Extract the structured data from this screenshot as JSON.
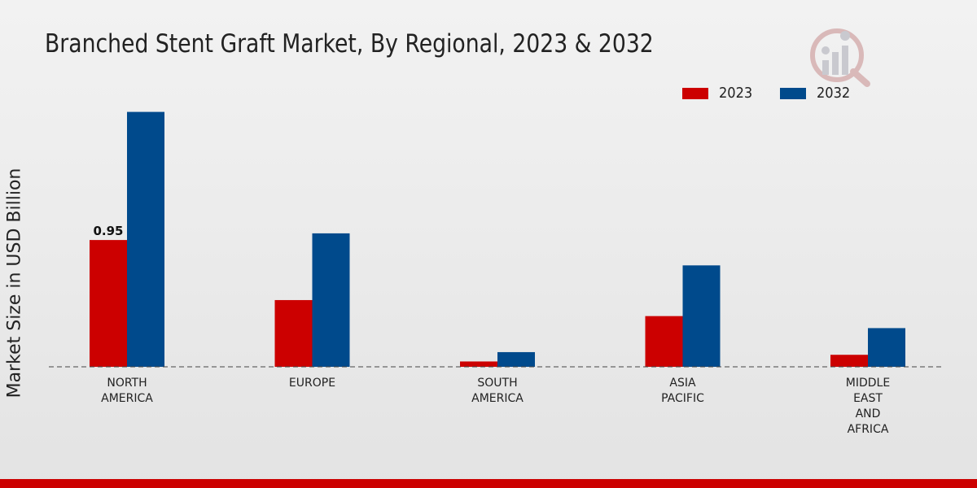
{
  "chart_data": {
    "type": "bar",
    "title": "Branched Stent Graft Market, By Regional, 2023 & 2032",
    "ylabel": "Market Size in USD Billion",
    "xlabel": "",
    "categories": [
      "NORTH\nAMERICA",
      "EUROPE",
      "SOUTH\nAMERICA",
      "ASIA\nPACIFIC",
      "MIDDLE\nEAST\nAND\nAFRICA"
    ],
    "series": [
      {
        "name": "2023",
        "color": "#cc0000",
        "values": [
          0.95,
          0.5,
          0.04,
          0.38,
          0.09
        ]
      },
      {
        "name": "2032",
        "color": "#004a8c",
        "values": [
          1.91,
          1.0,
          0.11,
          0.76,
          0.29
        ]
      }
    ],
    "data_labels": [
      {
        "series": 0,
        "index": 0,
        "text": "0.95"
      }
    ],
    "ylim": [
      0,
      2.2
    ],
    "grid": false,
    "legend_position": "top-right"
  }
}
